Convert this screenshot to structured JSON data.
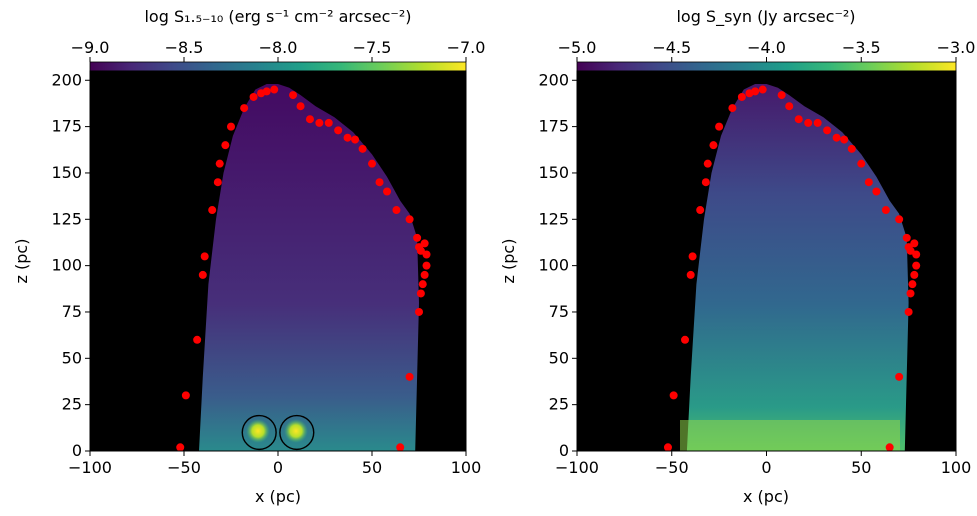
{
  "chart_data": [
    {
      "type": "heatmap",
      "id": "left",
      "colorbar_label": "log S₁.₅₋₁₀ (erg s⁻¹ cm⁻² arcsec⁻²)",
      "colorbar_range": [
        -9.0,
        -7.0
      ],
      "colorbar_ticks": [
        -9.0,
        -8.5,
        -8.0,
        -7.5,
        -7.0
      ],
      "colorbar_tick_labels": [
        "−9.0",
        "−8.5",
        "−8.0",
        "−7.5",
        "−7.0"
      ],
      "xlabel": "x (pc)",
      "ylabel": "z (pc)",
      "xlim": [
        -100,
        100
      ],
      "ylim": [
        0,
        205
      ],
      "xticks": [
        -100,
        -50,
        0,
        50,
        100
      ],
      "xtick_labels": [
        "−100",
        "−50",
        "0",
        "50",
        "100"
      ],
      "yticks": [
        0,
        25,
        50,
        75,
        100,
        125,
        150,
        175,
        200
      ],
      "ytick_labels": [
        "0",
        "25",
        "50",
        "75",
        "100",
        "125",
        "150",
        "175",
        "200"
      ],
      "circles": [
        {
          "x": -10,
          "y": 10,
          "r": 9
        },
        {
          "x": 10,
          "y": 10,
          "r": 9
        }
      ],
      "points": [
        [
          -52,
          2
        ],
        [
          -49,
          30
        ],
        [
          -43,
          60
        ],
        [
          -40,
          95
        ],
        [
          -39,
          105
        ],
        [
          -35,
          130
        ],
        [
          -32,
          145
        ],
        [
          -31,
          155
        ],
        [
          -28,
          165
        ],
        [
          -25,
          175
        ],
        [
          -18,
          185
        ],
        [
          -13,
          191
        ],
        [
          -9,
          193
        ],
        [
          -6,
          194
        ],
        [
          -2,
          195
        ],
        [
          8,
          192
        ],
        [
          12,
          186
        ],
        [
          17,
          179
        ],
        [
          22,
          177
        ],
        [
          27,
          177
        ],
        [
          32,
          173
        ],
        [
          37,
          169
        ],
        [
          41,
          168
        ],
        [
          45,
          163
        ],
        [
          50,
          155
        ],
        [
          54,
          145
        ],
        [
          58,
          140
        ],
        [
          63,
          130
        ],
        [
          70,
          125
        ],
        [
          70,
          40
        ],
        [
          65,
          2
        ],
        [
          74,
          115
        ],
        [
          75,
          110
        ],
        [
          76,
          108
        ],
        [
          78,
          112
        ],
        [
          79,
          106
        ],
        [
          79,
          100
        ],
        [
          78,
          95
        ],
        [
          77,
          90
        ],
        [
          76,
          85
        ],
        [
          75,
          75
        ]
      ]
    },
    {
      "type": "heatmap",
      "id": "right",
      "colorbar_label": "log S_syn (Jy arcsec⁻²)",
      "colorbar_range": [
        -5.0,
        -3.0
      ],
      "colorbar_ticks": [
        -5.0,
        -4.5,
        -4.0,
        -3.5,
        -3.0
      ],
      "colorbar_tick_labels": [
        "−5.0",
        "−4.5",
        "−4.0",
        "−3.5",
        "−3.0"
      ],
      "xlabel": "x (pc)",
      "ylabel": "z (pc)",
      "xlim": [
        -100,
        100
      ],
      "ylim": [
        0,
        205
      ],
      "xticks": [
        -100,
        -50,
        0,
        50,
        100
      ],
      "xtick_labels": [
        "−100",
        "−50",
        "0",
        "50",
        "100"
      ],
      "yticks": [
        0,
        25,
        50,
        75,
        100,
        125,
        150,
        175,
        200
      ],
      "ytick_labels": [
        "0",
        "25",
        "50",
        "75",
        "100",
        "125",
        "150",
        "175",
        "200"
      ],
      "circles": [],
      "points": [
        [
          -52,
          2
        ],
        [
          -49,
          30
        ],
        [
          -43,
          60
        ],
        [
          -40,
          95
        ],
        [
          -39,
          105
        ],
        [
          -35,
          130
        ],
        [
          -32,
          145
        ],
        [
          -31,
          155
        ],
        [
          -28,
          165
        ],
        [
          -25,
          175
        ],
        [
          -18,
          185
        ],
        [
          -13,
          191
        ],
        [
          -9,
          193
        ],
        [
          -6,
          194
        ],
        [
          -2,
          195
        ],
        [
          8,
          192
        ],
        [
          12,
          186
        ],
        [
          17,
          179
        ],
        [
          22,
          177
        ],
        [
          27,
          177
        ],
        [
          32,
          173
        ],
        [
          37,
          169
        ],
        [
          41,
          168
        ],
        [
          45,
          163
        ],
        [
          50,
          155
        ],
        [
          54,
          145
        ],
        [
          58,
          140
        ],
        [
          63,
          130
        ],
        [
          70,
          125
        ],
        [
          70,
          40
        ],
        [
          65,
          2
        ],
        [
          74,
          115
        ],
        [
          75,
          110
        ],
        [
          76,
          108
        ],
        [
          78,
          112
        ],
        [
          79,
          106
        ],
        [
          79,
          100
        ],
        [
          78,
          95
        ],
        [
          77,
          90
        ],
        [
          76,
          85
        ],
        [
          75,
          75
        ]
      ]
    }
  ],
  "colors": {
    "background": "#000000",
    "point_color": "#ff0000",
    "circle_color": "#000000",
    "viridis": [
      "#440154",
      "#482878",
      "#3e4a89",
      "#31688e",
      "#26828e",
      "#1f9e89",
      "#35b779",
      "#6ece58",
      "#b5de2b",
      "#fde725"
    ]
  }
}
